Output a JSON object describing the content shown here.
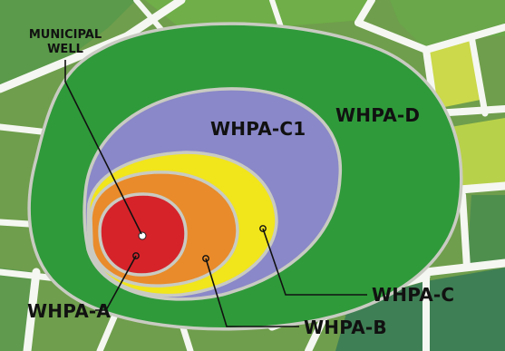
{
  "labels": {
    "well_line1": "MUNICIPAL",
    "well_line2": "WELL",
    "zone_a": "WHPA-A",
    "zone_b": "WHPA-B",
    "zone_c": "WHPA-C",
    "zone_c1": "WHPA-C1",
    "zone_d": "WHPA-D"
  },
  "colors": {
    "background": "#6f9e4c",
    "block_light": "#cbd94a",
    "block_dark": "#3f7f55",
    "streets": "#f5f7f2",
    "zone_d": "#2f9a3a",
    "zone_c1": "#8a88c8",
    "zone_c": "#f1e51c",
    "zone_b": "#e98b2a",
    "zone_a": "#d6232a",
    "zone_outline": "#c9cbc2",
    "leader": "#111111",
    "well": "#ffffff"
  }
}
